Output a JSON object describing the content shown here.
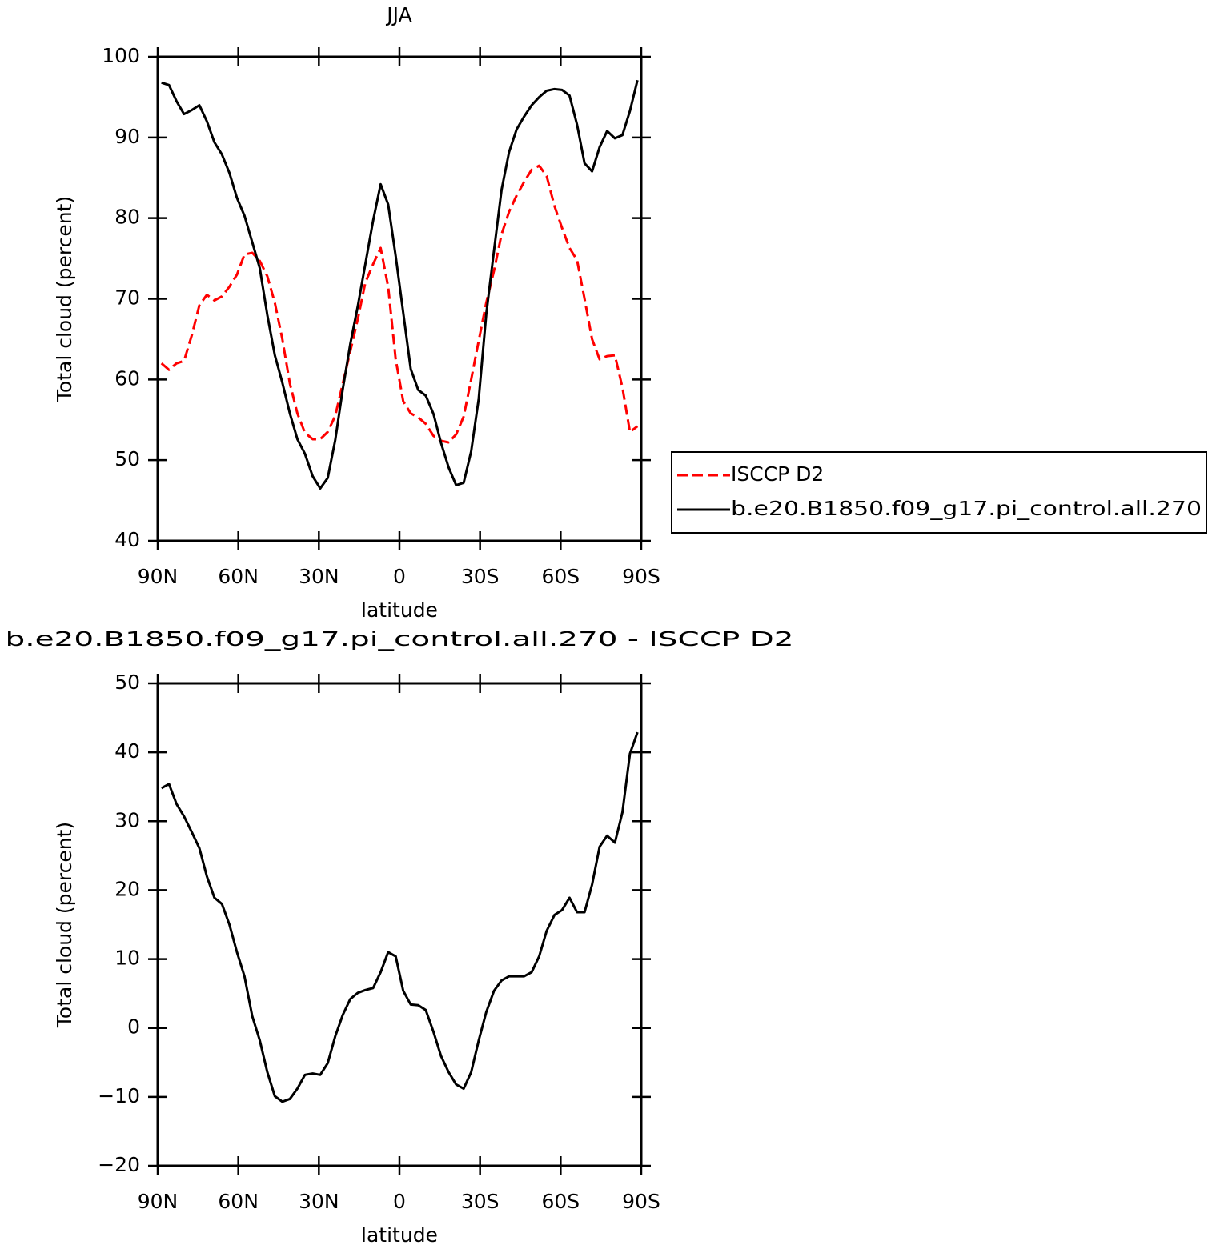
{
  "chart_data": [
    {
      "type": "line",
      "title": "JJA",
      "xlabel": "latitude",
      "ylabel": "Total cloud (percent)",
      "x": [
        88.6,
        85.8,
        83.0,
        80.2,
        77.3,
        74.5,
        71.7,
        68.9,
        66.1,
        63.3,
        60.5,
        57.7,
        54.8,
        52.0,
        49.2,
        46.4,
        43.6,
        40.8,
        38.0,
        35.2,
        32.3,
        29.5,
        26.7,
        23.9,
        21.1,
        18.3,
        15.5,
        12.7,
        9.8,
        7.0,
        4.2,
        1.4,
        -1.4,
        -4.2,
        -7.0,
        -9.8,
        -12.7,
        -15.5,
        -18.3,
        -21.1,
        -23.9,
        -26.7,
        -29.5,
        -32.3,
        -35.2,
        -38.0,
        -40.8,
        -43.6,
        -46.4,
        -49.2,
        -52.0,
        -54.8,
        -57.7,
        -60.5,
        -63.3,
        -66.1,
        -68.9,
        -71.7,
        -74.5,
        -77.3,
        -80.2,
        -83.0,
        -85.8,
        -88.6
      ],
      "xlim": [
        90,
        -90
      ],
      "xticks": [
        {
          "value": 90,
          "label": "90N"
        },
        {
          "value": 60,
          "label": "60N"
        },
        {
          "value": 30,
          "label": "30N"
        },
        0,
        {
          "value": -30,
          "label": "30S"
        },
        {
          "value": -60,
          "label": "60S"
        },
        {
          "value": -90,
          "label": "90S"
        }
      ],
      "ylim": [
        40,
        100
      ],
      "yticks": [
        40,
        50,
        60,
        70,
        80,
        90,
        100
      ],
      "legend": "outside right",
      "series": [
        {
          "name": "ISCCP D2",
          "color": "#ff0000",
          "linestyle": "dashed",
          "values": [
            62.0,
            61.2,
            62.0,
            62.3,
            65.5,
            69.2,
            70.5,
            69.8,
            70.3,
            71.5,
            73.0,
            75.5,
            75.7,
            74.7,
            72.8,
            69.5,
            65.0,
            59.5,
            55.8,
            53.4,
            52.6,
            52.6,
            53.5,
            55.5,
            59.5,
            63.5,
            67.5,
            72.0,
            74.3,
            76.3,
            71.5,
            62.5,
            57.3,
            55.8,
            55.3,
            54.5,
            53.0,
            52.4,
            52.2,
            53.2,
            55.4,
            60.0,
            64.8,
            69.5,
            73.5,
            78.0,
            80.8,
            82.8,
            84.5,
            86.0,
            86.5,
            85.2,
            81.5,
            78.8,
            76.3,
            74.8,
            70.0,
            65.0,
            62.5,
            62.9,
            63.0,
            59.0,
            53.5,
            54.2
          ]
        },
        {
          "name": "b.e20.B1850.f09_g17.pi_control.all.270",
          "color": "#000000",
          "linestyle": "solid",
          "values": [
            96.8,
            96.5,
            94.5,
            92.9,
            93.4,
            94.0,
            92.0,
            89.4,
            87.9,
            85.6,
            82.5,
            80.3,
            77.0,
            73.8,
            68.0,
            63.0,
            59.6,
            55.8,
            52.6,
            50.8,
            48.0,
            46.5,
            47.8,
            52.5,
            58.8,
            64.4,
            69.1,
            74.3,
            79.7,
            84.2,
            81.7,
            75.3,
            68.3,
            61.3,
            58.7,
            58.0,
            55.7,
            52.1,
            49.1,
            46.9,
            47.2,
            51.1,
            57.6,
            68.1,
            76.0,
            83.5,
            88.2,
            91.0,
            92.6,
            94.0,
            95.0,
            95.8,
            96.0,
            95.9,
            95.2,
            91.6,
            86.8,
            85.8,
            88.8,
            90.8,
            89.9,
            90.3,
            93.3,
            97.1
          ]
        }
      ]
    },
    {
      "type": "line",
      "title": "b.e20.B1850.f09_g17.pi_control.all.270 - ISCCP D2",
      "xlabel": "latitude",
      "ylabel": "Total cloud (percent)",
      "x": [
        88.6,
        85.8,
        83.0,
        80.2,
        77.3,
        74.5,
        71.7,
        68.9,
        66.1,
        63.3,
        60.5,
        57.7,
        54.8,
        52.0,
        49.2,
        46.4,
        43.6,
        40.8,
        38.0,
        35.2,
        32.3,
        29.5,
        26.7,
        23.9,
        21.1,
        18.3,
        15.5,
        12.7,
        9.8,
        7.0,
        4.2,
        1.4,
        -1.4,
        -4.2,
        -7.0,
        -9.8,
        -12.7,
        -15.5,
        -18.3,
        -21.1,
        -23.9,
        -26.7,
        -29.5,
        -32.3,
        -35.2,
        -38.0,
        -40.8,
        -43.6,
        -46.4,
        -49.2,
        -52.0,
        -54.8,
        -57.7,
        -60.5,
        -63.3,
        -66.1,
        -68.9,
        -71.7,
        -74.5,
        -77.3,
        -80.2,
        -83.0,
        -85.8,
        -88.6
      ],
      "xlim": [
        90,
        -90
      ],
      "xticks": [
        {
          "value": 90,
          "label": "90N"
        },
        {
          "value": 60,
          "label": "60N"
        },
        {
          "value": 30,
          "label": "30N"
        },
        0,
        {
          "value": -30,
          "label": "30S"
        },
        {
          "value": -60,
          "label": "60S"
        },
        {
          "value": -90,
          "label": "90S"
        }
      ],
      "ylim": [
        -20,
        50
      ],
      "yticks": [
        {
          "value": -20,
          "label": "−20"
        },
        {
          "value": -10,
          "label": "−10"
        },
        0,
        10,
        20,
        30,
        40,
        50
      ],
      "series": [
        {
          "color": "#000000",
          "linestyle": "solid",
          "values": [
            34.8,
            35.4,
            32.5,
            30.7,
            28.4,
            26.1,
            22.0,
            18.9,
            18.0,
            15.0,
            11.0,
            7.5,
            1.7,
            -1.8,
            -6.4,
            -9.9,
            -10.7,
            -10.3,
            -8.8,
            -6.8,
            -6.6,
            -6.8,
            -5.1,
            -1.2,
            1.9,
            4.2,
            5.1,
            5.5,
            5.8,
            8.1,
            11.0,
            10.4,
            5.4,
            3.4,
            3.3,
            2.6,
            -0.6,
            -4.1,
            -6.4,
            -8.2,
            -8.8,
            -6.4,
            -1.8,
            2.3,
            5.4,
            6.9,
            7.5,
            7.5,
            7.5,
            8.1,
            10.4,
            14.1,
            16.4,
            17.1,
            18.9,
            16.8,
            16.8,
            20.8,
            26.3,
            27.9,
            26.9,
            31.3,
            39.8,
            42.9
          ]
        }
      ]
    }
  ]
}
